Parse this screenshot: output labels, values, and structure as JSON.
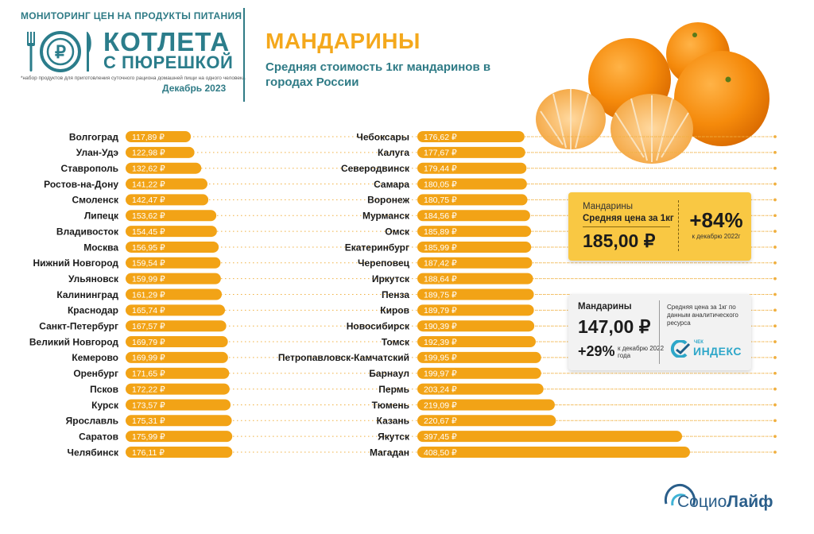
{
  "header": {
    "monitoring_title": "МОНИТОРИНГ ЦЕН НА ПРОДУКТЫ ПИТАНИЯ",
    "brand_line1": "КОТЛЕТА",
    "brand_line2": "С ПЮРЕШКОЙ",
    "footnote": "*набор продуктов для приготовления суточного рациона домашней пищи на одного человека",
    "period": "Декабрь 2023"
  },
  "chart_data": {
    "type": "bar",
    "title": "МАНДАРИНЫ",
    "subtitle": "Средняя стоимость 1кг мандаринов в городах России",
    "currency_suffix": "₽",
    "bar_color": "#f2a316",
    "columns": [
      {
        "categories": [
          "Волгоград",
          "Улан-Удэ",
          "Ставрополь",
          "Ростов-на-Дону",
          "Смоленск",
          "Липецк",
          "Владивосток",
          "Москва",
          "Нижний Новгород",
          "Ульяновск",
          "Калининград",
          "Краснодар",
          "Санкт-Петербург",
          "Великий Новгород",
          "Кемерово",
          "Оренбург",
          "Псков",
          "Курск",
          "Ярославль",
          "Саратов",
          "Челябинск"
        ],
        "values": [
          117.89,
          122.98,
          132.62,
          141.22,
          142.47,
          153.62,
          154.45,
          156.95,
          159.54,
          159.99,
          161.29,
          165.74,
          167.57,
          169.79,
          169.99,
          171.65,
          172.22,
          173.57,
          175.31,
          175.99,
          176.11
        ],
        "value_labels": [
          "117,89 ₽",
          "122,98 ₽",
          "132,62 ₽",
          "141,22 ₽",
          "142,47 ₽",
          "153,62 ₽",
          "154,45 ₽",
          "156,95 ₽",
          "159,54 ₽",
          "159,99 ₽",
          "161,29 ₽",
          "165,74 ₽",
          "167,57 ₽",
          "169,79 ₽",
          "169,99 ₽",
          "171,65 ₽",
          "172,22 ₽",
          "173,57 ₽",
          "175,31 ₽",
          "175,99 ₽",
          "176,11 ₽"
        ]
      },
      {
        "categories": [
          "Чебоксары",
          "Калуга",
          "Северодвинск",
          "Самара",
          "Воронеж",
          "Мурманск",
          "Омск",
          "Екатеринбург",
          "Череповец",
          "Иркутск",
          "Пенза",
          "Киров",
          "Новосибирск",
          "Томск",
          "Петропавловск-Камчатский",
          "Барнаул",
          "Пермь",
          "Тюмень",
          "Казань",
          "Якутск",
          "Магадан"
        ],
        "values": [
          176.62,
          177.67,
          179.44,
          180.05,
          180.75,
          184.56,
          185.89,
          185.99,
          187.42,
          188.64,
          189.75,
          189.79,
          190.39,
          192.39,
          199.95,
          199.97,
          203.24,
          219.09,
          220.67,
          397.45,
          408.5
        ],
        "value_labels": [
          "176,62 ₽",
          "177,67 ₽",
          "179,44 ₽",
          "180,05 ₽",
          "180,75 ₽",
          "184,56 ₽",
          "185,89 ₽",
          "185,99 ₽",
          "187,42 ₽",
          "188,64 ₽",
          "189,75 ₽",
          "189,79 ₽",
          "190,39 ₽",
          "192,39 ₽",
          "199,95 ₽",
          "199,97 ₽",
          "203,24 ₽",
          "219,09 ₽",
          "220,67 ₽",
          "397,45 ₽",
          "408,50 ₽"
        ]
      }
    ]
  },
  "card_avg": {
    "label": "Мандарины",
    "sublabel": "Средняя цена за 1кг",
    "price": "185,00 ₽",
    "change": "+84%",
    "change_note": "к декабрю 2022г"
  },
  "card_chek": {
    "label": "Мандарины",
    "price": "147,00 ₽",
    "change": "+29%",
    "change_note": "к декабрю 2022 года",
    "description": "Средняя цена за 1кг по данным аналитического ресурса",
    "logo_small": "ЧЕК",
    "logo_big": "ИНДЕКС"
  },
  "footer": {
    "logo_part1": "Социо",
    "logo_part2": "Лайф"
  }
}
